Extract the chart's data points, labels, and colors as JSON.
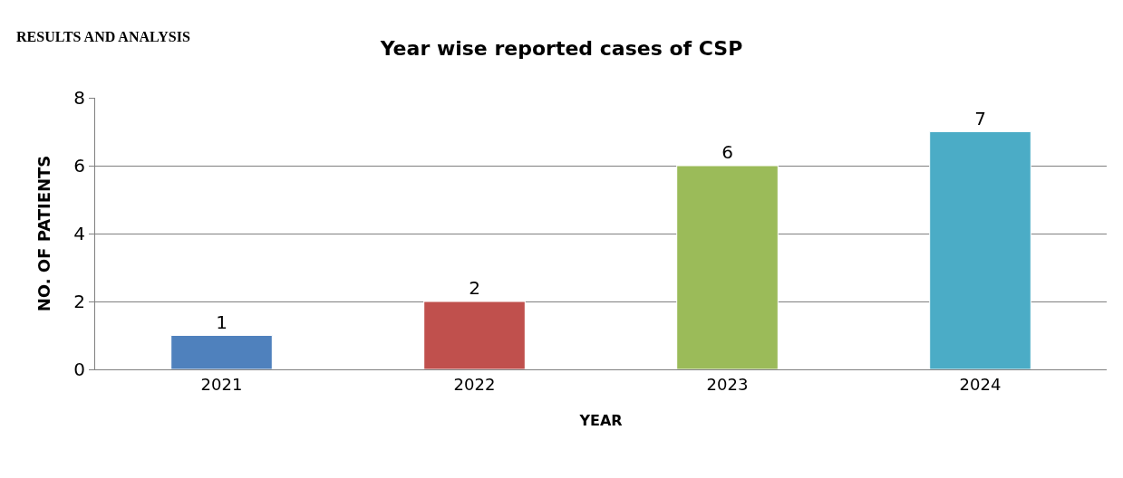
{
  "chart_data": {
    "type": "bar",
    "title": "Year wise reported cases of CSP",
    "xlabel": "YEAR",
    "ylabel": "NO. OF PATIENTS",
    "annotations": [
      "RESULTS AND ANALYSIS"
    ],
    "categories": [
      "2021",
      "2022",
      "2023",
      "2024"
    ],
    "values": [
      1,
      2,
      6,
      7
    ],
    "colors": [
      "#4f81bd",
      "#c0504d",
      "#9bbb59",
      "#4bacc6"
    ],
    "ylim": [
      0,
      8
    ],
    "yticks": [
      0,
      2,
      4,
      6,
      8
    ],
    "grid": "y",
    "data_labels": true
  }
}
